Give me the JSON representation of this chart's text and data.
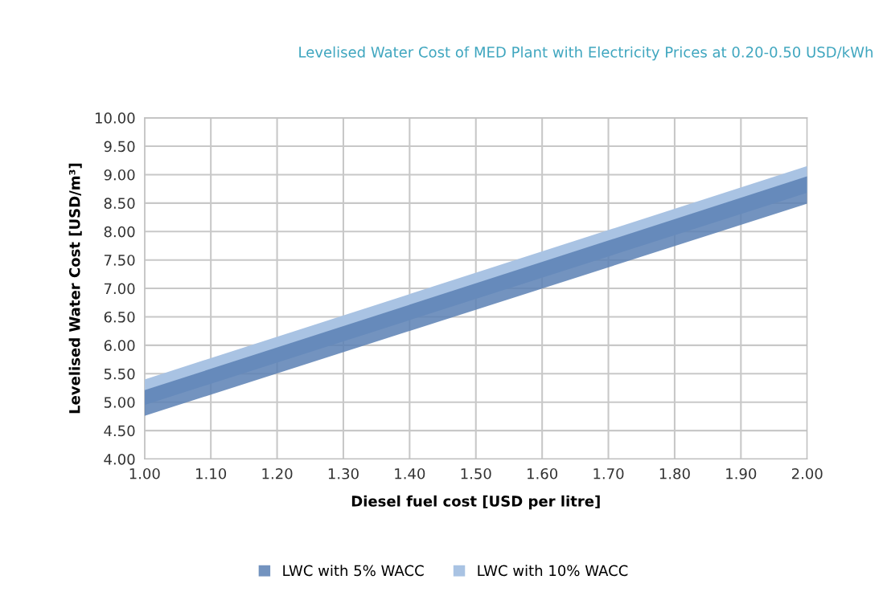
{
  "chart_data": {
    "type": "area",
    "title": "Levelised Water Cost of MED Plant with Electricity Prices at 0.20-0.50 USD/kWh",
    "xlabel": "Diesel fuel cost [USD per litre]",
    "ylabel": "Levelised Water Cost [USD/m³]",
    "x": [
      1.0,
      2.0
    ],
    "series": [
      {
        "name": "LWC with 5% WACC",
        "color": "#5a80b4",
        "values": [
          null,
          null
        ],
        "lower": [
          4.76,
          8.49
        ],
        "upper": [
          5.21,
          8.97
        ]
      },
      {
        "name": "LWC with 10% WACC",
        "color": "#a9c3e3",
        "values": [
          null,
          null
        ],
        "lower": [
          4.95,
          8.68
        ],
        "upper": [
          5.4,
          9.15
        ]
      }
    ],
    "xlim": [
      1.0,
      2.0
    ],
    "xticks": [
      {
        "value": 1.0,
        "label": "1.00"
      },
      {
        "value": 1.1,
        "label": "1.10"
      },
      {
        "value": 1.2,
        "label": "1.20"
      },
      {
        "value": 1.3,
        "label": "1.30"
      },
      {
        "value": 1.4,
        "label": "1.40"
      },
      {
        "value": 1.5,
        "label": "1.50"
      },
      {
        "value": 1.6,
        "label": "1.60"
      },
      {
        "value": 1.7,
        "label": "1.70"
      },
      {
        "value": 1.8,
        "label": "1.80"
      },
      {
        "value": 1.9,
        "label": "1.90"
      },
      {
        "value": 2.0,
        "label": "2.00"
      }
    ],
    "ylim": [
      4.0,
      10.0
    ],
    "yticks": [
      {
        "value": 4.0,
        "label": "4.00"
      },
      {
        "value": 4.5,
        "label": "4.50"
      },
      {
        "value": 5.0,
        "label": "5.00"
      },
      {
        "value": 5.5,
        "label": "5.50"
      },
      {
        "value": 6.0,
        "label": "6.00"
      },
      {
        "value": 6.5,
        "label": "6.50"
      },
      {
        "value": 7.0,
        "label": "7.00"
      },
      {
        "value": 7.5,
        "label": "7.50"
      },
      {
        "value": 8.0,
        "label": "8.00"
      },
      {
        "value": 8.5,
        "label": "8.50"
      },
      {
        "value": 9.0,
        "label": "9.00"
      },
      {
        "value": 9.5,
        "label": "9.50"
      },
      {
        "value": 10.0,
        "label": "10.00"
      }
    ],
    "grid": true,
    "legend": "bottom"
  }
}
